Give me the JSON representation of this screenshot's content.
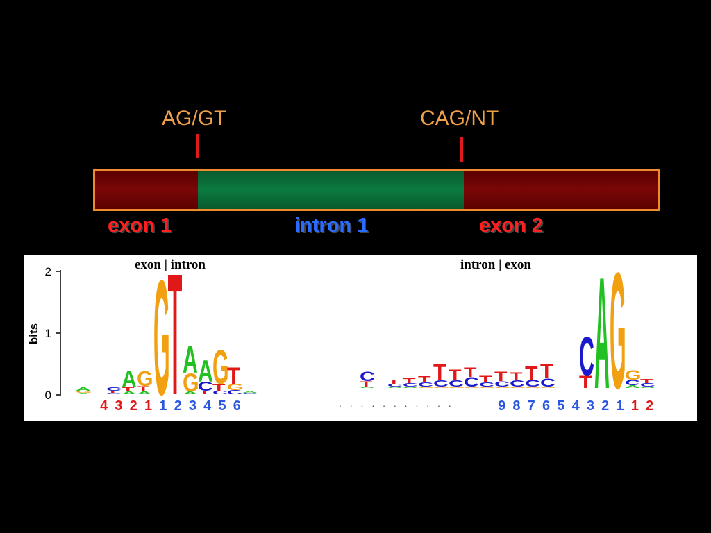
{
  "top": {
    "donor_site": "AG/GT",
    "acceptor_site": "CAG/NT",
    "exon1": "exon 1",
    "intron1": "intron 1",
    "exon2": "exon 2"
  },
  "donor_logo": {
    "title": "exon | intron",
    "y_axis_label": "bits",
    "y_ticks": [
      "2",
      "1",
      "0"
    ],
    "positions": [
      {
        "label": "4",
        "color": "#e01a1a"
      },
      {
        "label": "3",
        "color": "#e01a1a"
      },
      {
        "label": "2",
        "color": "#e01a1a"
      },
      {
        "label": "1",
        "color": "#e01a1a"
      },
      {
        "label": "1",
        "color": "#2a56e0"
      },
      {
        "label": "2",
        "color": "#2a56e0"
      },
      {
        "label": "3",
        "color": "#2a56e0"
      },
      {
        "label": "4",
        "color": "#2a56e0"
      },
      {
        "label": "5",
        "color": "#2a56e0"
      },
      {
        "label": "6",
        "color": "#2a56e0"
      }
    ]
  },
  "acceptor_logo": {
    "title": "intron | exon",
    "dots": ". . . . . . . . . . .",
    "positions": [
      {
        "label": "9",
        "color": "#2a56e0"
      },
      {
        "label": "8",
        "color": "#2a56e0"
      },
      {
        "label": "7",
        "color": "#2a56e0"
      },
      {
        "label": "6",
        "color": "#2a56e0"
      },
      {
        "label": "5",
        "color": "#2a56e0"
      },
      {
        "label": "4",
        "color": "#2a56e0"
      },
      {
        "label": "3",
        "color": "#2a56e0"
      },
      {
        "label": "2",
        "color": "#2a56e0"
      },
      {
        "label": "1",
        "color": "#2a56e0"
      },
      {
        "label": "1",
        "color": "#e01a1a"
      },
      {
        "label": "2",
        "color": "#e01a1a"
      }
    ]
  },
  "colors": {
    "A": "#22c022",
    "C": "#1a1acc",
    "G": "#f0a010",
    "T": "#e01818",
    "exon": "#7a0707",
    "intron": "#0b7a40",
    "frame": "#f08a2a"
  }
}
